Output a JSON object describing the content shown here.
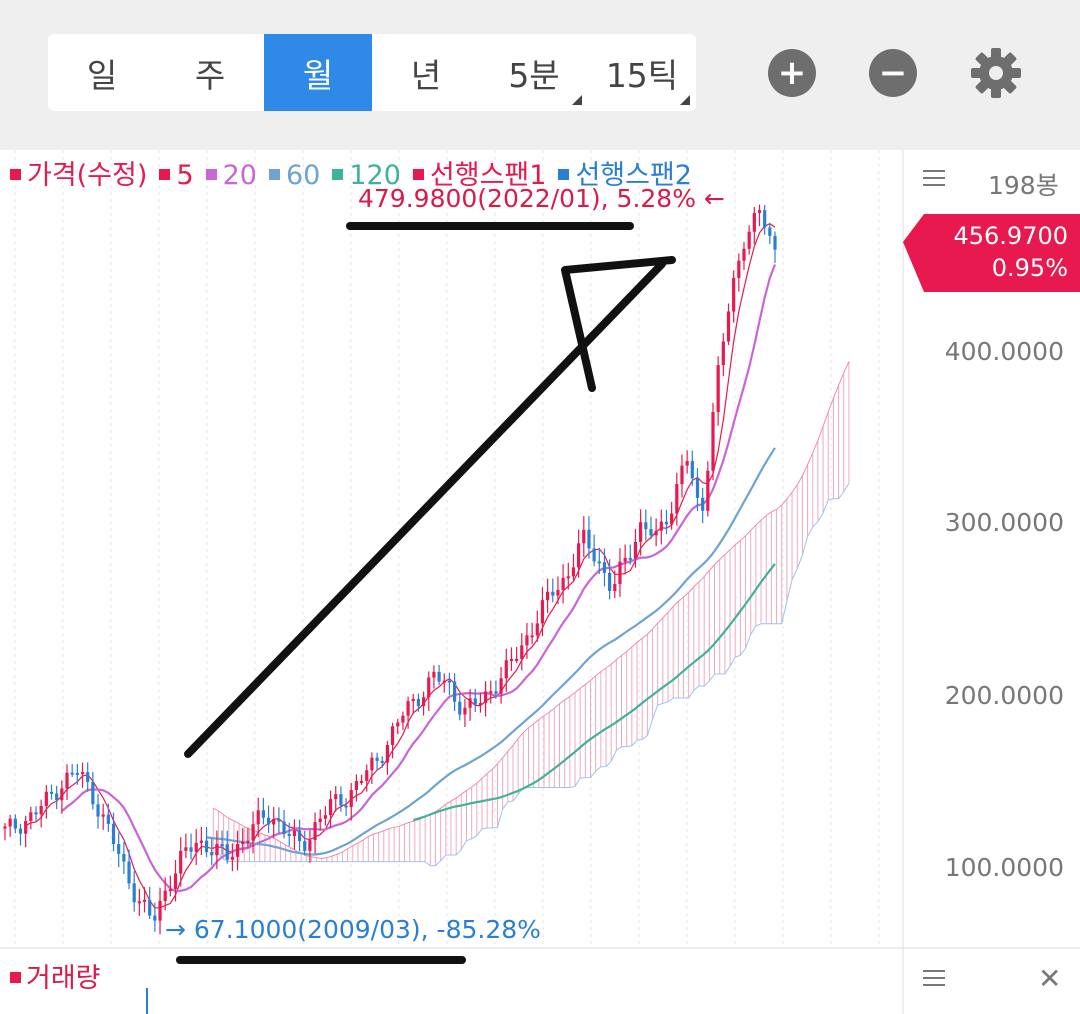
{
  "tabs": [
    {
      "label": "일",
      "active": false,
      "more": false
    },
    {
      "label": "주",
      "active": false,
      "more": false
    },
    {
      "label": "월",
      "active": true,
      "more": false
    },
    {
      "label": "년",
      "active": false,
      "more": false
    },
    {
      "label": "5분",
      "active": false,
      "more": true
    },
    {
      "label": "15틱",
      "active": false,
      "more": true
    }
  ],
  "toolbar": {
    "zoom_in": "+",
    "zoom_out": "−",
    "settings_icon": "gear-icon"
  },
  "legend": [
    {
      "label": "가격(수정)",
      "color": "#e8194f"
    },
    {
      "label": "5",
      "color": "#e8194f"
    },
    {
      "label": "20",
      "color": "#c965d6"
    },
    {
      "label": "60",
      "color": "#6fa3d4"
    },
    {
      "label": "120",
      "color": "#3fb39a"
    },
    {
      "label": "선행스팬1",
      "color": "#e8194f"
    },
    {
      "label": "선행스팬2",
      "color": "#2a7fd4"
    }
  ],
  "annotations": {
    "max_label": "479.9800(2022/01), 5.28%",
    "max_arrow": "←",
    "min_label": "67.1000(2009/03), -85.28%",
    "min_arrow": "→"
  },
  "right_axis": {
    "bong_count": "198봉",
    "current_price": "456.9700",
    "current_change": "0.95%",
    "ticks": [
      "400.0000",
      "300.0000",
      "200.0000",
      "100.0000"
    ]
  },
  "volume": {
    "legend": "거래량"
  },
  "colors": {
    "up": "#e8194f",
    "down": "#2a7fd4",
    "ma20": "#c965d6",
    "ma60": "#6fa3d4",
    "ma120": "#3fb39a",
    "accent": "#2e8ae6"
  },
  "chart_data": {
    "type": "candlestick",
    "timeframe": "monthly",
    "y_ticks": [
      100,
      200,
      300,
      400
    ],
    "current_price": 456.97,
    "high": {
      "value": 479.98,
      "date": "2022/01",
      "pct": 5.28
    },
    "low": {
      "value": 67.1,
      "date": "2009/03",
      "pct": -85.28
    },
    "approx_close_path": [
      120,
      125,
      130,
      140,
      150,
      155,
      140,
      120,
      100,
      80,
      67,
      90,
      105,
      115,
      110,
      105,
      115,
      125,
      130,
      120,
      110,
      125,
      135,
      140,
      150,
      160,
      175,
      190,
      200,
      210,
      205,
      190,
      195,
      205,
      215,
      230,
      245,
      260,
      270,
      290,
      280,
      260,
      280,
      300,
      290,
      310,
      340,
      300,
      380,
      430,
      470,
      480,
      457
    ]
  }
}
